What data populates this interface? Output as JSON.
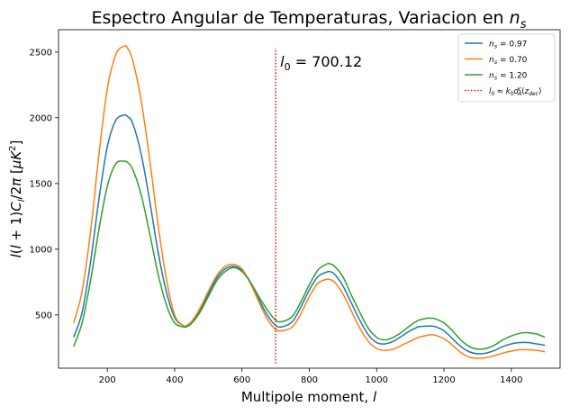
{
  "chart_data": {
    "type": "line",
    "title": "Espectro Angular de Temperaturas, Variacion en n_s",
    "title_main": "Espectro Angular de Temperaturas, Variacion en ",
    "title_math": "n",
    "title_math_sub": "s",
    "xlabel": "Multipole moment, l",
    "xlabel_text": "Multipole moment, ",
    "xlabel_math": "l",
    "ylabel": "l(l+1)C_l/2π [μK²]",
    "xlim": [
      55,
      1545
    ],
    "ylim": [
      95,
      2670
    ],
    "xticks": [
      200,
      400,
      600,
      800,
      1000,
      1200,
      1400
    ],
    "yticks": [
      500,
      1000,
      1500,
      2000,
      2500
    ],
    "grid": false,
    "legend_position": "top-right",
    "colors": {
      "blue": "#1f77b4",
      "orange": "#ff7f0e",
      "green": "#2ca02c",
      "red": "#ff0000"
    },
    "annotation": {
      "text": "l_0 = 700.12",
      "x": 700.12,
      "y": 2430
    },
    "vline": {
      "x": 700.12,
      "y_range": [
        130,
        2530
      ],
      "label": "l_0 = k_0 d_A^c(z_dec)",
      "color": "#ff0000",
      "style": "dotted"
    },
    "series": [
      {
        "name": "n_s = 0.97",
        "name_parts": {
          "base": "n",
          "sub": "s",
          "rest": " = 0.97"
        },
        "color": "#1f77b4",
        "x": [
          100,
          125,
          150,
          175,
          200,
          225,
          250,
          260,
          275,
          300,
          325,
          350,
          375,
          400,
          425,
          435,
          450,
          475,
          500,
          525,
          550,
          575,
          600,
          625,
          650,
          675,
          700,
          720,
          750,
          775,
          800,
          825,
          850,
          860,
          875,
          900,
          925,
          950,
          975,
          1000,
          1025,
          1050,
          1075,
          1100,
          1125,
          1150,
          1165,
          1175,
          1200,
          1225,
          1250,
          1275,
          1300,
          1325,
          1350,
          1375,
          1400,
          1425,
          1450,
          1475,
          1500
        ],
        "y": [
          330,
          520,
          900,
          1380,
          1780,
          1980,
          2020,
          2010,
          1960,
          1730,
          1380,
          990,
          680,
          480,
          420,
          415,
          440,
          530,
          660,
          780,
          850,
          870,
          840,
          750,
          620,
          500,
          420,
          410,
          450,
          560,
          690,
          790,
          825,
          830,
          810,
          720,
          590,
          460,
          350,
          290,
          280,
          300,
          340,
          380,
          410,
          415,
          415,
          410,
          380,
          320,
          260,
          220,
          205,
          210,
          230,
          260,
          280,
          290,
          290,
          280,
          270
        ]
      },
      {
        "name": "n_s = 0.70",
        "name_parts": {
          "base": "n",
          "sub": "s",
          "rest": " = 0.70"
        },
        "color": "#ff7f0e",
        "x": [
          100,
          125,
          150,
          175,
          200,
          225,
          250,
          260,
          275,
          300,
          325,
          350,
          375,
          400,
          425,
          435,
          450,
          475,
          500,
          525,
          550,
          575,
          600,
          625,
          650,
          675,
          700,
          720,
          750,
          775,
          800,
          825,
          850,
          860,
          875,
          900,
          925,
          950,
          975,
          1000,
          1025,
          1050,
          1075,
          1100,
          1125,
          1150,
          1165,
          1175,
          1200,
          1225,
          1250,
          1275,
          1300,
          1325,
          1350,
          1375,
          1400,
          1425,
          1450,
          1475,
          1500
        ],
        "y": [
          440,
          680,
          1130,
          1720,
          2220,
          2480,
          2545,
          2530,
          2440,
          2140,
          1700,
          1200,
          780,
          500,
          420,
          420,
          450,
          550,
          680,
          800,
          870,
          885,
          850,
          740,
          600,
          470,
          390,
          380,
          410,
          510,
          640,
          740,
          770,
          770,
          750,
          660,
          530,
          400,
          300,
          245,
          230,
          240,
          270,
          300,
          330,
          345,
          350,
          345,
          320,
          270,
          215,
          180,
          170,
          175,
          190,
          210,
          225,
          235,
          235,
          230,
          220
        ]
      },
      {
        "name": "n_s = 1.20",
        "name_parts": {
          "base": "n",
          "sub": "s",
          "rest": " = 1.20"
        },
        "color": "#2ca02c",
        "x": [
          100,
          125,
          150,
          175,
          200,
          225,
          250,
          260,
          275,
          300,
          325,
          350,
          375,
          400,
          425,
          435,
          450,
          475,
          500,
          525,
          550,
          575,
          600,
          625,
          650,
          675,
          700,
          720,
          750,
          775,
          800,
          825,
          850,
          860,
          875,
          900,
          925,
          950,
          975,
          1000,
          1025,
          1050,
          1075,
          1100,
          1125,
          1150,
          1165,
          1175,
          1200,
          1225,
          1250,
          1275,
          1300,
          1325,
          1350,
          1375,
          1400,
          1425,
          1450,
          1475,
          1500
        ],
        "y": [
          260,
          440,
          760,
          1150,
          1480,
          1650,
          1670,
          1660,
          1610,
          1420,
          1130,
          820,
          580,
          440,
          410,
          410,
          435,
          520,
          640,
          760,
          830,
          860,
          830,
          750,
          640,
          540,
          460,
          450,
          490,
          600,
          730,
          840,
          885,
          890,
          870,
          790,
          650,
          520,
          400,
          330,
          310,
          330,
          370,
          420,
          460,
          475,
          475,
          470,
          440,
          380,
          310,
          260,
          240,
          245,
          270,
          310,
          340,
          360,
          365,
          355,
          330
        ]
      }
    ]
  }
}
